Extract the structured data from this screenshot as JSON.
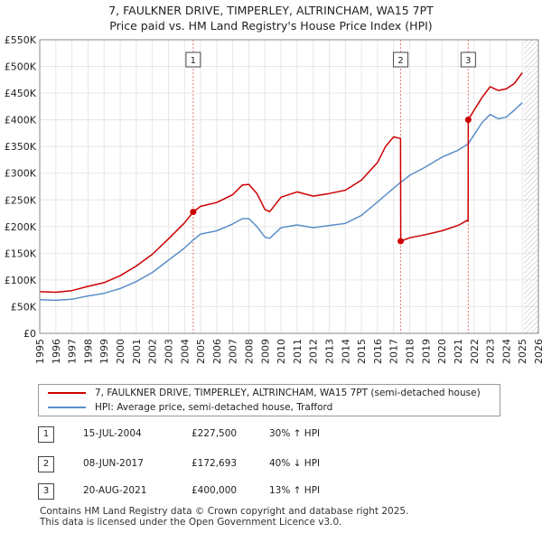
{
  "title": {
    "line1": "7, FAULKNER DRIVE, TIMPERLEY, ALTRINCHAM, WA15 7PT",
    "line2": "Price paid vs. HM Land Registry's House Price Index (HPI)"
  },
  "chart_data": {
    "type": "line",
    "title": "7, FAULKNER DRIVE, TIMPERLEY, ALTRINCHAM, WA15 7PT — Price paid vs. HM Land Registry's House Price Index (HPI)",
    "xlabel": "",
    "ylabel": "",
    "xlim": [
      1995,
      2026
    ],
    "ylim": [
      0,
      550000
    ],
    "y_ticks": [
      0,
      50000,
      100000,
      150000,
      200000,
      250000,
      300000,
      350000,
      400000,
      450000,
      500000,
      550000
    ],
    "y_tick_labels": [
      "£0",
      "£50K",
      "£100K",
      "£150K",
      "£200K",
      "£250K",
      "£300K",
      "£350K",
      "£400K",
      "£450K",
      "£500K",
      "£550K"
    ],
    "x_ticks": [
      1995,
      1996,
      1997,
      1998,
      1999,
      2000,
      2001,
      2002,
      2003,
      2004,
      2005,
      2006,
      2007,
      2008,
      2009,
      2010,
      2011,
      2012,
      2013,
      2014,
      2015,
      2016,
      2017,
      2018,
      2019,
      2020,
      2021,
      2022,
      2023,
      2024,
      2025,
      2026
    ],
    "grid": true,
    "hatched_future_from": 2025.1,
    "series": [
      {
        "name": "7, FAULKNER DRIVE, TIMPERLEY, ALTRINCHAM, WA15 7PT (semi-detached house)",
        "color": "#cc0000",
        "x": [
          1995.0,
          1996.0,
          1997.0,
          1998.0,
          1999.0,
          2000.0,
          2001.0,
          2002.0,
          2003.0,
          2004.0,
          2004.54,
          2005.0,
          2006.0,
          2007.0,
          2007.6,
          2008.0,
          2008.5,
          2009.0,
          2009.3,
          2010.0,
          2011.0,
          2012.0,
          2013.0,
          2014.0,
          2015.0,
          2016.0,
          2016.5,
          2017.0,
          2017.43,
          2017.44,
          2018.0,
          2019.0,
          2020.0,
          2021.0,
          2021.6,
          2021.63,
          2021.64,
          2022.0,
          2022.5,
          2023.0,
          2023.5,
          2024.0,
          2024.5,
          2025.0
        ],
        "values": [
          78000,
          77000,
          80000,
          88000,
          95000,
          108000,
          126000,
          148000,
          177000,
          207000,
          227500,
          238000,
          245000,
          260000,
          278000,
          279000,
          262000,
          232000,
          228000,
          255000,
          265000,
          257000,
          262000,
          268000,
          287000,
          320000,
          350000,
          368000,
          365000,
          172693,
          179000,
          185000,
          192000,
          202000,
          212000,
          210000,
          400000,
          418000,
          442000,
          462000,
          455000,
          458000,
          468000,
          488000
        ]
      },
      {
        "name": "HPI: Average price, semi-detached house, Trafford",
        "color": "#5b8fc9",
        "x": [
          1995.0,
          1996.0,
          1997.0,
          1998.0,
          1999.0,
          2000.0,
          2001.0,
          2002.0,
          2003.0,
          2004.0,
          2004.54,
          2005.0,
          2006.0,
          2007.0,
          2007.6,
          2008.0,
          2008.5,
          2009.0,
          2009.3,
          2010.0,
          2011.0,
          2012.0,
          2013.0,
          2014.0,
          2015.0,
          2016.0,
          2017.0,
          2017.44,
          2018.0,
          2019.0,
          2020.0,
          2021.0,
          2021.64,
          2022.0,
          2022.5,
          2023.0,
          2023.5,
          2024.0,
          2024.5,
          2025.0
        ],
        "values": [
          63000,
          62000,
          64000,
          70000,
          75000,
          84000,
          97000,
          114000,
          137000,
          160000,
          175000,
          186000,
          192000,
          205000,
          215000,
          215000,
          200000,
          180000,
          178000,
          198000,
          203000,
          198000,
          202000,
          206000,
          221000,
          246000,
          272000,
          283000,
          296000,
          312000,
          330000,
          343000,
          355000,
          372000,
          395000,
          410000,
          402000,
          405000,
          418000,
          432000
        ]
      }
    ],
    "markers": [
      {
        "label": "1",
        "x": 2004.54,
        "value": 227500
      },
      {
        "label": "2",
        "x": 2017.44,
        "value": 172693
      },
      {
        "label": "3",
        "x": 2021.64,
        "value": 400000
      }
    ],
    "legend_position": "below"
  },
  "legend": {
    "items": [
      {
        "label": "7, FAULKNER DRIVE, TIMPERLEY, ALTRINCHAM, WA15 7PT (semi-detached house)",
        "color": "#cc0000"
      },
      {
        "label": "HPI: Average price, semi-detached house, Trafford",
        "color": "#5b8fc9"
      }
    ]
  },
  "sales": [
    {
      "num": "1",
      "date": "15-JUL-2004",
      "price": "£227,500",
      "hpi": "30% ↑ HPI"
    },
    {
      "num": "2",
      "date": "08-JUN-2017",
      "price": "£172,693",
      "hpi": "40% ↓ HPI"
    },
    {
      "num": "3",
      "date": "20-AUG-2021",
      "price": "£400,000",
      "hpi": "13% ↑ HPI"
    }
  ],
  "footer": {
    "line1": "Contains HM Land Registry data © Crown copyright and database right 2025.",
    "line2": "This data is licensed under the Open Government Licence v3.0."
  }
}
